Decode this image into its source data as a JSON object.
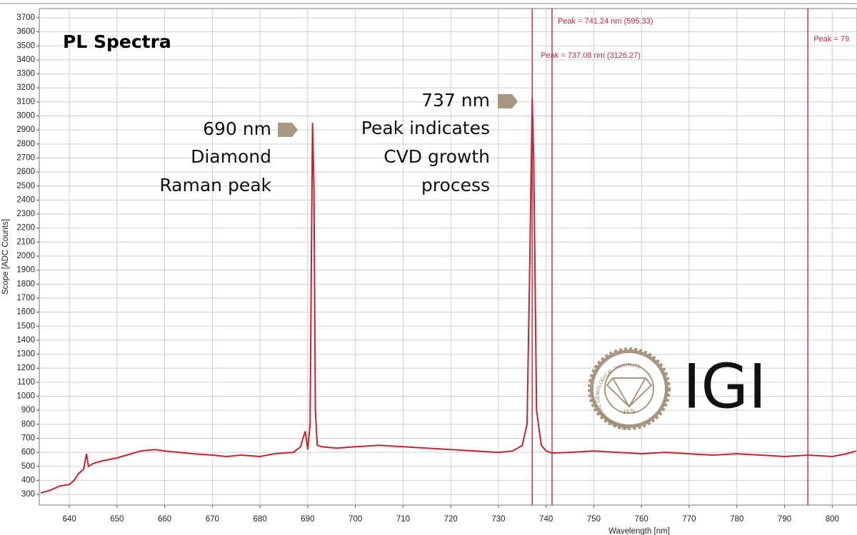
{
  "chart_data": {
    "type": "line",
    "title": "PL Spectra",
    "xlabel": "Wavelength [nm]",
    "ylabel": "Scope [ADC Counts]",
    "color": "#c8202c",
    "grid": true,
    "xlim": [
      633.7,
      805.2
    ],
    "ylim": [
      224,
      3766
    ],
    "xticks": [
      640,
      650,
      660,
      670,
      680,
      690,
      700,
      710,
      720,
      730,
      740,
      750,
      760,
      770,
      780,
      790,
      800
    ],
    "yticks": [
      300,
      400,
      500,
      600,
      700,
      800,
      900,
      1000,
      1100,
      1200,
      1300,
      1400,
      1500,
      1600,
      1700,
      1800,
      1900,
      2000,
      2100,
      2200,
      2300,
      2400,
      2500,
      2600,
      2700,
      2800,
      2900,
      3000,
      3100,
      3200,
      3300,
      3400,
      3500,
      3600,
      3700
    ],
    "x": [
      634,
      636,
      638,
      640,
      641,
      642,
      643,
      643.6,
      644,
      645,
      647,
      650,
      652,
      655,
      658,
      660,
      663,
      666,
      670,
      673,
      676,
      680,
      683,
      687,
      688.5,
      689,
      689.5,
      690,
      690.5,
      690.8,
      691,
      691.3,
      691.6,
      692,
      693,
      696,
      700,
      705,
      710,
      715,
      720,
      725,
      730,
      733,
      735,
      736,
      736.6,
      737.08,
      737.4,
      737.7,
      738,
      739,
      740,
      741.24,
      745,
      750,
      755,
      760,
      765,
      770,
      775,
      780,
      785,
      790,
      795,
      800,
      803,
      805
    ],
    "values": [
      310,
      330,
      360,
      370,
      400,
      450,
      480,
      590,
      500,
      520,
      540,
      560,
      580,
      610,
      620,
      610,
      600,
      590,
      580,
      570,
      580,
      570,
      590,
      600,
      640,
      700,
      750,
      620,
      800,
      2100,
      2950,
      2500,
      900,
      650,
      640,
      630,
      640,
      650,
      640,
      630,
      620,
      610,
      600,
      610,
      650,
      800,
      2000,
      3126,
      2700,
      1800,
      900,
      650,
      610,
      595,
      600,
      610,
      600,
      590,
      600,
      590,
      580,
      590,
      580,
      570,
      580,
      570,
      590,
      610
    ],
    "peak_markers": [
      {
        "x": 737.08,
        "label": "Peak = 737.08 nm (3126.27)"
      },
      {
        "x": 741.24,
        "label": "Peak = 741.24 nm (595.33)"
      },
      {
        "x": 794.9,
        "label": "Peak = 79"
      }
    ],
    "annotations": [
      "690 nm",
      "Diamond",
      "Raman peak",
      "737 nm",
      "Peak indicates",
      "CVD growth",
      "process"
    ]
  },
  "logo": {
    "text": "IGI",
    "ring": "INTERNATIONAL GEMOLOGICAL INSTITUTE",
    "year": "1975"
  }
}
